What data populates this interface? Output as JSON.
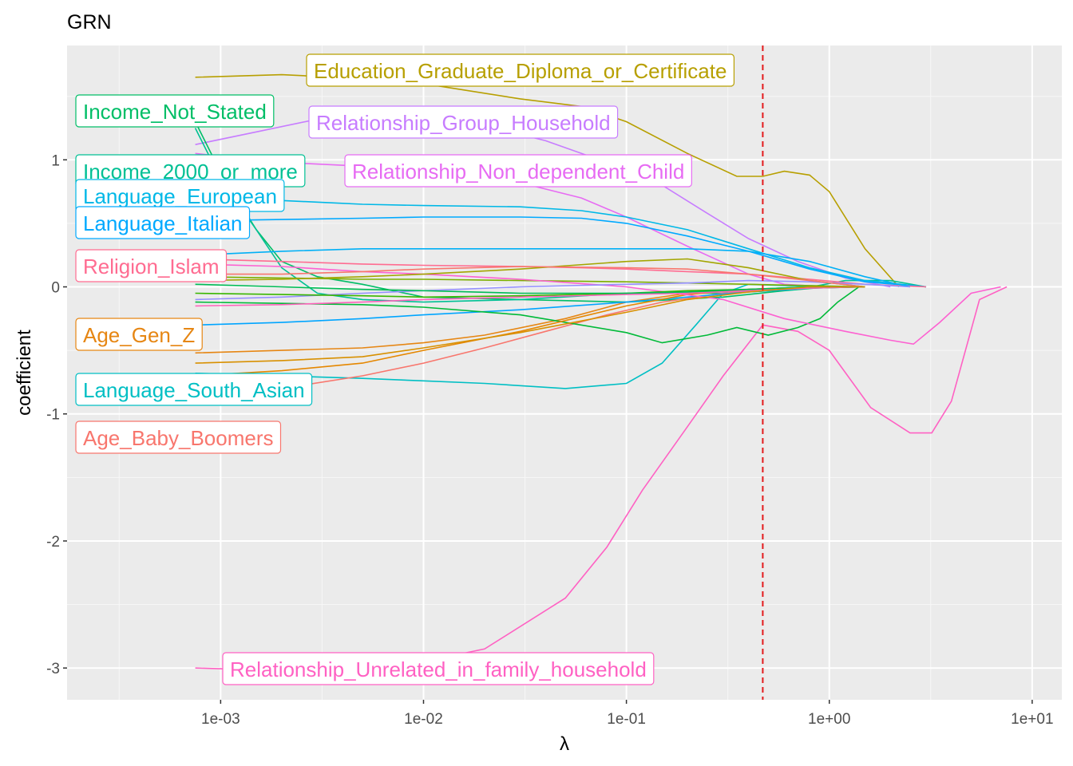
{
  "chart_data": {
    "type": "line",
    "title": "GRN",
    "xlabel": "λ",
    "ylabel": "coefficient",
    "x_scale": "log10",
    "xlim": [
      0.000175,
      14
    ],
    "ylim": [
      -3.25,
      1.9
    ],
    "x_ticks": [
      0.001,
      0.01,
      0.1,
      1,
      10
    ],
    "x_tick_labels": [
      "1e-03",
      "1e-02",
      "1e-01",
      "1e+00",
      "1e+01"
    ],
    "y_ticks": [
      -3,
      -2,
      -1,
      0,
      1
    ],
    "y_tick_labels": [
      "-3",
      "-2",
      "-1",
      "0",
      "1"
    ],
    "grid": true,
    "vline": {
      "x": 0.47,
      "color": "#e41a1c",
      "style": "dashed"
    },
    "series": [
      {
        "name": "Education_Graduate_Diploma_or_Certificate",
        "color": "#b79f00",
        "x": [
          0.00075,
          0.002,
          0.005,
          0.01,
          0.03,
          0.06,
          0.1,
          0.2,
          0.35,
          0.47,
          0.6,
          0.8,
          1.0,
          1.5,
          2.2
        ],
        "y": [
          1.65,
          1.67,
          1.64,
          1.6,
          1.48,
          1.42,
          1.3,
          1.05,
          0.87,
          0.87,
          0.91,
          0.88,
          0.75,
          0.3,
          0.0
        ]
      },
      {
        "name": "Relationship_Group_Household",
        "color": "#c77cff",
        "x": [
          0.00075,
          0.0015,
          0.003,
          0.006,
          0.01,
          0.02,
          0.04,
          0.08,
          0.15,
          0.25,
          0.4,
          0.7,
          1.2,
          2.0
        ],
        "y": [
          1.12,
          1.22,
          1.32,
          1.36,
          1.35,
          1.27,
          1.15,
          0.98,
          0.8,
          0.58,
          0.38,
          0.2,
          0.07,
          0.0
        ]
      },
      {
        "name": "Relationship_Non_dependent_Child",
        "color": "#e76bf3",
        "x": [
          0.00075,
          0.002,
          0.005,
          0.01,
          0.03,
          0.06,
          0.1,
          0.2,
          0.4,
          0.6,
          1.0,
          1.5
        ],
        "y": [
          1.05,
          0.98,
          0.95,
          0.92,
          0.82,
          0.7,
          0.55,
          0.32,
          0.1,
          0.02,
          0.0,
          0.0
        ]
      },
      {
        "name": "Income_Not_Stated",
        "color": "#00be67",
        "x": [
          0.00075,
          0.001,
          0.0015,
          0.002,
          0.003,
          0.005,
          0.01,
          0.03,
          0.1,
          0.3,
          0.6,
          1.0
        ],
        "y": [
          1.3,
          0.9,
          0.45,
          0.2,
          0.08,
          0.02,
          -0.08,
          -0.1,
          -0.12,
          -0.08,
          -0.03,
          0.0
        ]
      },
      {
        "name": "Income_2000_or_more",
        "color": "#00c094",
        "x": [
          0.00075,
          0.001,
          0.0015,
          0.002,
          0.003,
          0.005,
          0.01,
          0.03,
          0.1,
          0.3,
          0.7,
          1.2,
          2.0,
          3.0
        ],
        "y": [
          1.25,
          0.85,
          0.45,
          0.15,
          -0.05,
          -0.1,
          -0.12,
          -0.1,
          -0.05,
          -0.05,
          -0.02,
          0.05,
          0.05,
          0.0
        ]
      },
      {
        "name": "Language_European",
        "color": "#00b8e7",
        "x": [
          0.00075,
          0.002,
          0.005,
          0.01,
          0.03,
          0.06,
          0.1,
          0.2,
          0.4,
          0.8,
          1.5,
          3.0
        ],
        "y": [
          0.7,
          0.68,
          0.65,
          0.64,
          0.63,
          0.6,
          0.55,
          0.45,
          0.3,
          0.15,
          0.05,
          0.0
        ]
      },
      {
        "name": "Language_Italian",
        "color": "#00a9ff",
        "x": [
          0.00075,
          0.002,
          0.005,
          0.01,
          0.03,
          0.06,
          0.1,
          0.2,
          0.4,
          0.8,
          1.5,
          3.0
        ],
        "y": [
          0.52,
          0.53,
          0.54,
          0.55,
          0.55,
          0.54,
          0.5,
          0.4,
          0.28,
          0.14,
          0.04,
          0.0
        ]
      },
      {
        "name": "Religion_Islam",
        "color": "#ff6c91",
        "x": [
          0.00075,
          0.002,
          0.005,
          0.01,
          0.03,
          0.06,
          0.1,
          0.2,
          0.4,
          0.8,
          1.5,
          3.0
        ],
        "y": [
          0.22,
          0.2,
          0.18,
          0.17,
          0.16,
          0.15,
          0.14,
          0.12,
          0.1,
          0.06,
          0.02,
          0.0
        ]
      },
      {
        "name": "Age_Gen_Z",
        "color": "#e68613",
        "x": [
          0.00075,
          0.002,
          0.005,
          0.01,
          0.02,
          0.05,
          0.1,
          0.2,
          0.4,
          0.8,
          1.5
        ],
        "y": [
          -0.52,
          -0.5,
          -0.48,
          -0.44,
          -0.38,
          -0.25,
          -0.12,
          -0.05,
          -0.02,
          0.0,
          0.0
        ]
      },
      {
        "name": "Language_South_Asian",
        "color": "#00bfc4",
        "x": [
          0.00075,
          0.002,
          0.005,
          0.01,
          0.02,
          0.05,
          0.1,
          0.15,
          0.22,
          0.3,
          0.4,
          0.6,
          1.0
        ],
        "y": [
          -0.68,
          -0.7,
          -0.72,
          -0.74,
          -0.76,
          -0.8,
          -0.76,
          -0.6,
          -0.3,
          -0.05,
          0.02,
          0.01,
          0.0
        ]
      },
      {
        "name": "Age_Baby_Boomers",
        "color": "#f8766d",
        "x": [
          0.00075,
          0.002,
          0.005,
          0.01,
          0.02,
          0.04,
          0.08,
          0.15,
          0.3,
          0.6,
          1.2
        ],
        "y": [
          -0.9,
          -0.8,
          -0.7,
          -0.6,
          -0.48,
          -0.35,
          -0.22,
          -0.12,
          -0.05,
          -0.01,
          0.0
        ]
      },
      {
        "name": "Relationship_Unrelated_in_family_household",
        "color": "#ff61c3",
        "x": [
          0.00075,
          0.002,
          0.005,
          0.01,
          0.02,
          0.05,
          0.08,
          0.12,
          0.2,
          0.3,
          0.47,
          0.7,
          1.0,
          1.6,
          2.5,
          3.2,
          4.0,
          5.5,
          7.5
        ],
        "y": [
          -3.0,
          -3.02,
          -3.0,
          -2.95,
          -2.85,
          -2.45,
          -2.05,
          -1.6,
          -1.1,
          -0.7,
          -0.3,
          -0.35,
          -0.5,
          -0.95,
          -1.15,
          -1.15,
          -0.9,
          -0.1,
          0.0
        ]
      },
      {
        "name": "",
        "color": "#7cae00",
        "x": [
          0.00075,
          0.002,
          0.005,
          0.01,
          0.03,
          0.1,
          0.2,
          0.4,
          0.8,
          1.5
        ],
        "y": [
          0.08,
          0.07,
          0.06,
          0.06,
          0.05,
          0.04,
          0.03,
          0.02,
          0.01,
          0.0
        ]
      },
      {
        "name": "",
        "color": "#00a5ff",
        "x": [
          0.00075,
          0.002,
          0.005,
          0.01,
          0.03,
          0.1,
          0.2,
          0.4,
          0.8,
          1.5
        ],
        "y": [
          -0.3,
          -0.28,
          -0.25,
          -0.22,
          -0.18,
          -0.12,
          -0.08,
          -0.04,
          -0.01,
          0.0
        ]
      },
      {
        "name": "",
        "color": "#00ba38",
        "x": [
          0.00075,
          0.002,
          0.005,
          0.01,
          0.03,
          0.1,
          0.15,
          0.25,
          0.35,
          0.5,
          0.7,
          0.9,
          1.1,
          1.4
        ],
        "y": [
          -0.12,
          -0.13,
          -0.14,
          -0.16,
          -0.22,
          -0.36,
          -0.44,
          -0.38,
          -0.32,
          -0.38,
          -0.32,
          -0.25,
          -0.12,
          0.0
        ]
      },
      {
        "name": "",
        "color": "#e58700",
        "x": [
          0.00075,
          0.002,
          0.005,
          0.01,
          0.03,
          0.1,
          0.2,
          0.4,
          0.8
        ],
        "y": [
          -0.7,
          -0.66,
          -0.6,
          -0.5,
          -0.35,
          -0.15,
          -0.06,
          -0.02,
          0.0
        ]
      },
      {
        "name": "",
        "color": "#fd61d1",
        "x": [
          0.00075,
          0.002,
          0.005,
          0.01,
          0.03,
          0.1,
          0.3,
          0.6,
          1.2,
          2.0,
          2.6,
          3.5,
          5.0,
          7.0
        ],
        "y": [
          0.18,
          0.16,
          0.12,
          0.1,
          0.06,
          0.0,
          -0.1,
          -0.25,
          -0.35,
          -0.42,
          -0.45,
          -0.28,
          -0.05,
          0.0
        ]
      },
      {
        "name": "",
        "color": "#a3a500",
        "x": [
          0.00075,
          0.002,
          0.005,
          0.01,
          0.03,
          0.1,
          0.2,
          0.4,
          0.8,
          1.5
        ],
        "y": [
          0.05,
          0.06,
          0.08,
          0.1,
          0.14,
          0.2,
          0.22,
          0.15,
          0.05,
          0.0
        ]
      },
      {
        "name": "",
        "color": "#00b0f6",
        "x": [
          0.00075,
          0.002,
          0.005,
          0.01,
          0.03,
          0.1,
          0.2,
          0.4,
          0.8,
          1.5,
          2.5
        ],
        "y": [
          0.25,
          0.28,
          0.3,
          0.3,
          0.3,
          0.3,
          0.3,
          0.28,
          0.2,
          0.08,
          0.0
        ]
      },
      {
        "name": "",
        "color": "#9590ff",
        "x": [
          0.00075,
          0.002,
          0.005,
          0.01,
          0.03,
          0.1,
          0.2,
          0.4,
          0.8,
          1.5,
          2.5
        ],
        "y": [
          -0.1,
          -0.08,
          -0.05,
          -0.03,
          0.0,
          0.02,
          0.03,
          0.05,
          0.04,
          0.02,
          0.0
        ]
      },
      {
        "name": "",
        "color": "#f8766d",
        "x": [
          0.00075,
          0.002,
          0.005,
          0.01,
          0.03,
          0.1,
          0.2,
          0.4,
          0.8,
          1.5
        ],
        "y": [
          0.1,
          0.1,
          0.12,
          0.14,
          0.16,
          0.15,
          0.14,
          0.1,
          0.05,
          0.0
        ]
      },
      {
        "name": "",
        "color": "#39b600",
        "x": [
          0.00075,
          0.002,
          0.005,
          0.01,
          0.03,
          0.1,
          0.2,
          0.4,
          0.8,
          1.5
        ],
        "y": [
          -0.05,
          -0.06,
          -0.07,
          -0.08,
          -0.07,
          -0.05,
          -0.03,
          -0.02,
          -0.01,
          0.0
        ]
      },
      {
        "name": "",
        "color": "#ff62bc",
        "x": [
          0.00075,
          0.002,
          0.005,
          0.01,
          0.03,
          0.1,
          0.2,
          0.4,
          0.8,
          1.5
        ],
        "y": [
          -0.15,
          -0.14,
          -0.12,
          -0.1,
          -0.08,
          -0.06,
          -0.05,
          -0.03,
          -0.01,
          0.0
        ]
      },
      {
        "name": "",
        "color": "#00bc56",
        "x": [
          0.00075,
          0.002,
          0.005,
          0.01,
          0.03,
          0.1,
          0.2,
          0.4,
          0.8,
          1.5
        ],
        "y": [
          0.02,
          0.0,
          -0.02,
          -0.03,
          -0.05,
          -0.05,
          -0.04,
          -0.02,
          0.0,
          0.0
        ]
      },
      {
        "name": "",
        "color": "#d89000",
        "x": [
          0.00075,
          0.002,
          0.005,
          0.01,
          0.03,
          0.1,
          0.2,
          0.4,
          0.8,
          1.5
        ],
        "y": [
          -0.6,
          -0.58,
          -0.55,
          -0.48,
          -0.36,
          -0.2,
          -0.1,
          -0.04,
          0.0,
          0.0
        ]
      }
    ],
    "labels": [
      {
        "series": "Education_Graduate_Diploma_or_Certificate",
        "text": "Education_Graduate_Diploma_or_Certificate",
        "color": "#b79f00"
      },
      {
        "series": "Income_Not_Stated",
        "text": "Income_Not_Stated",
        "color": "#00be67"
      },
      {
        "series": "Relationship_Group_Household",
        "text": "Relationship_Group_Household",
        "color": "#c77cff"
      },
      {
        "series": "Income_2000_or_more",
        "text": "Income_2000_or_more",
        "color": "#00c094"
      },
      {
        "series": "Relationship_Non_dependent_Child",
        "text": "Relationship_Non_dependent_Child",
        "color": "#e76bf3"
      },
      {
        "series": "Language_European",
        "text": "Language_European",
        "color": "#00b8e7"
      },
      {
        "series": "Language_Italian",
        "text": "Language_Italian",
        "color": "#00a9ff"
      },
      {
        "series": "Religion_Islam",
        "text": "Religion_Islam",
        "color": "#ff6c91"
      },
      {
        "series": "Age_Gen_Z",
        "text": "Age_Gen_Z",
        "color": "#e68613"
      },
      {
        "series": "Language_South_Asian",
        "text": "Language_South_Asian",
        "color": "#00bfc4"
      },
      {
        "series": "Age_Baby_Boomers",
        "text": "Age_Baby_Boomers",
        "color": "#f8766d"
      },
      {
        "series": "Relationship_Unrelated_in_family_household",
        "text": "Relationship_Unrelated_in_family_household",
        "color": "#ff61c3"
      }
    ]
  }
}
